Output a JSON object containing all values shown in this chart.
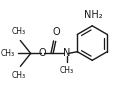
{
  "bg_color": "#ffffff",
  "line_color": "#1a1a1a",
  "lw": 1.0,
  "fig_width": 1.24,
  "fig_height": 0.87,
  "xlim": [
    0,
    124
  ],
  "ylim": [
    0,
    87
  ]
}
